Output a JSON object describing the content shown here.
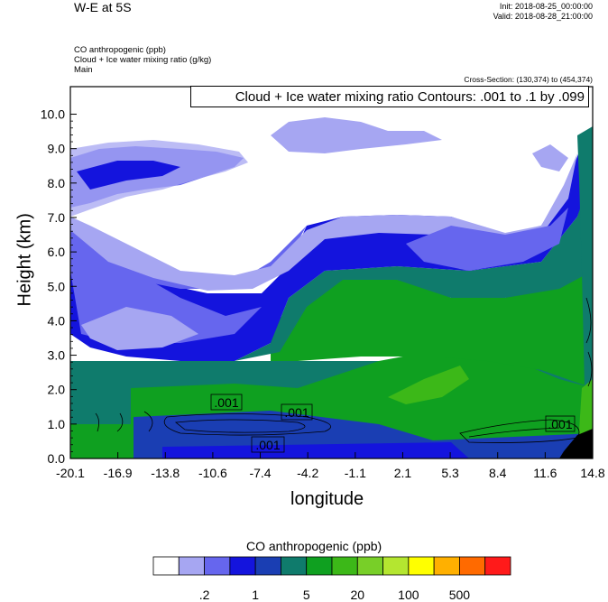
{
  "header": {
    "title": "W-E at 5S",
    "init": "Init: 2018-08-25_00:00:00",
    "valid": "Valid: 2018-08-28_21:00:00",
    "field1": "CO anthropogenic   (ppb)",
    "field2": "Cloud + Ice water mixing ratio   (g/kg)",
    "field3": "Main",
    "cross_section": "Cross-Section: (130,374) to (454,374)",
    "contour_info": "Cloud + Ice water mixing ratio Contours: .001 to .1 by .099"
  },
  "chart_data": {
    "type": "heatmap",
    "xlabel": "longitude",
    "ylabel": "Height (km)",
    "x_ticks": [
      "-20.1",
      "-16.9",
      "-13.8",
      "-10.6",
      "-7.4",
      "-4.2",
      "-1.1",
      "2.1",
      "5.3",
      "8.4",
      "11.6",
      "14.8"
    ],
    "y_ticks": [
      "0.0",
      "1.0",
      "2.0",
      "3.0",
      "4.0",
      "5.0",
      "6.0",
      "7.0",
      "8.0",
      "9.0",
      "10.0"
    ],
    "xlim": [
      -20.1,
      14.8
    ],
    "ylim": [
      0.0,
      10.8
    ],
    "contour_labels": [
      ".001",
      ".001",
      ".001",
      ".001"
    ],
    "colorbar": {
      "title": "CO anthropogenic  (ppb)",
      "colors": [
        "#ffffff",
        "#a6a6f2",
        "#6666ee",
        "#1414dd",
        "#1a3eb3",
        "#0f7b6c",
        "#0fa020",
        "#3cb818",
        "#78cf28",
        "#b4e630",
        "#ffff00",
        "#ffb000",
        "#ff6a00",
        "#ff1a1a"
      ],
      "labels": [
        ".2",
        "1",
        "5",
        "20",
        "100",
        "500"
      ]
    }
  }
}
